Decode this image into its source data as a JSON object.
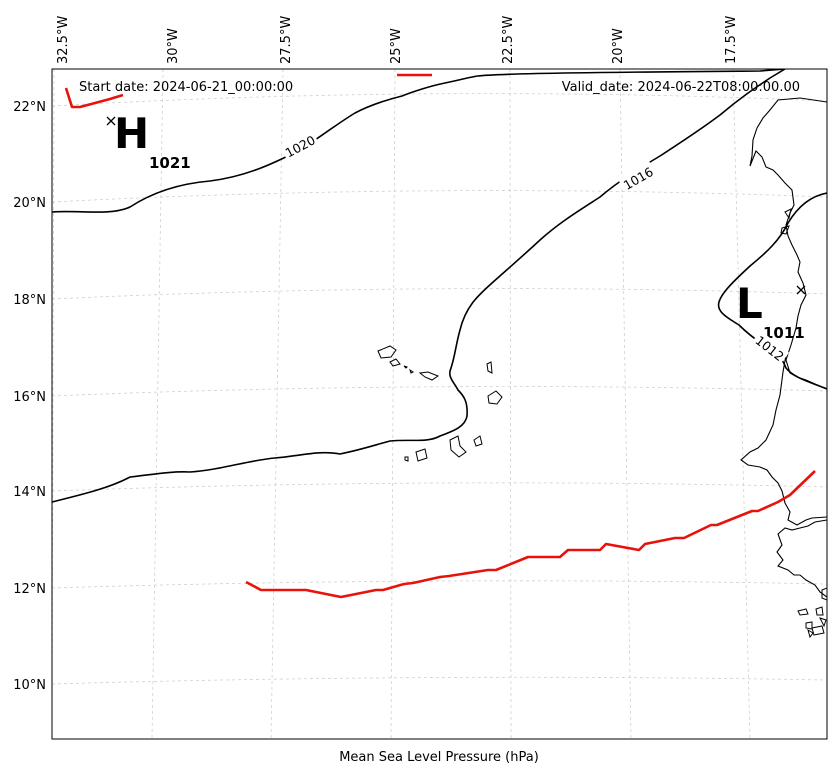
{
  "map": {
    "xlabel": "Mean Sea Level Pressure (hPa)",
    "start_date_text": "Start date: 2024-06-21_00:00:00",
    "valid_date_text": "Valid_date: 2024-06-22T08:00:00.00",
    "lon_ticks": [
      "32.5°W",
      "30°W",
      "27.5°W",
      "25°W",
      "22.5°W",
      "20°W",
      "17.5°W"
    ],
    "lat_ticks": [
      "22°N",
      "20°N",
      "18°N",
      "16°N",
      "14°N",
      "12°N",
      "10°N"
    ],
    "contour_labels": [
      "1020",
      "1016",
      "1012"
    ],
    "high": {
      "letter": "H",
      "value": "1021"
    },
    "low": {
      "letter": "L",
      "value": "1011"
    },
    "colors": {
      "contour": "#000000",
      "track": "#e8120c",
      "grid": "#cccccc",
      "coast": "#000000"
    }
  }
}
